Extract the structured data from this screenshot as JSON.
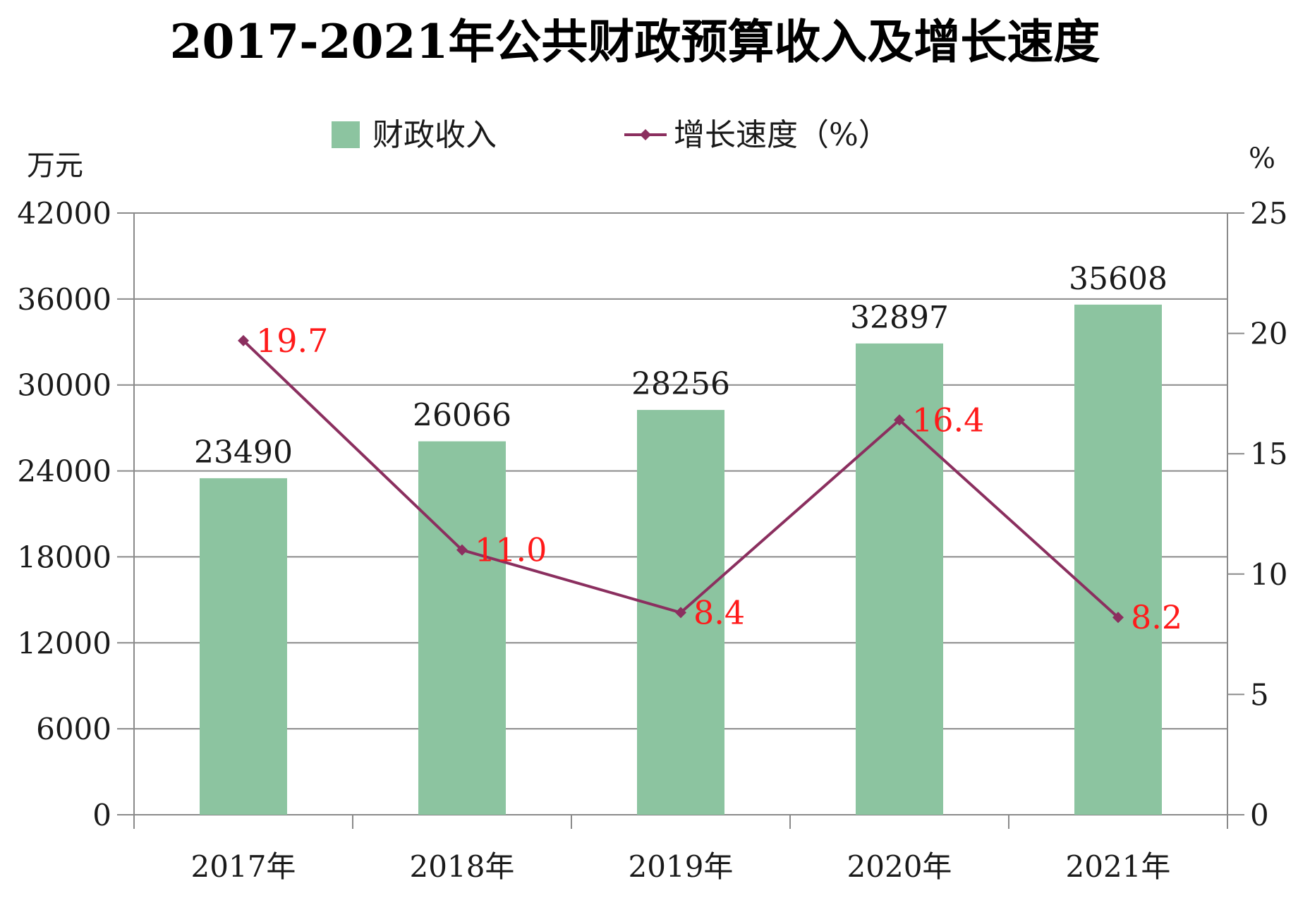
{
  "chart_data": {
    "type": "bar",
    "title": "2017-2021年公共财政预算收入及增长速度",
    "categories": [
      "2017年",
      "2018年",
      "2019年",
      "2020年",
      "2021年"
    ],
    "series": [
      {
        "name": "财政收入",
        "type": "bar",
        "axis": "left",
        "color": "#8CC4A0",
        "values": [
          23490,
          26066,
          28256,
          32897,
          35608
        ]
      },
      {
        "name": "增长速度（%）",
        "type": "line",
        "axis": "right",
        "color": "#8B2F5F",
        "values": [
          19.7,
          11.0,
          8.4,
          16.4,
          8.2
        ],
        "labels": [
          "19.7",
          "11.0",
          "8.4",
          "16.4",
          "8.2"
        ],
        "label_color": "#FF1A1A"
      }
    ],
    "y_left": {
      "label": "万元",
      "ylim": [
        0,
        42000
      ],
      "ticks": [
        "0",
        "6000",
        "12000",
        "18000",
        "24000",
        "30000",
        "36000",
        "42000"
      ]
    },
    "y_right": {
      "label": "%",
      "ylim": [
        0,
        25
      ],
      "ticks": [
        "0",
        "5",
        "10",
        "15",
        "20",
        "25"
      ]
    },
    "grid": true,
    "legend_position": "top-center"
  }
}
